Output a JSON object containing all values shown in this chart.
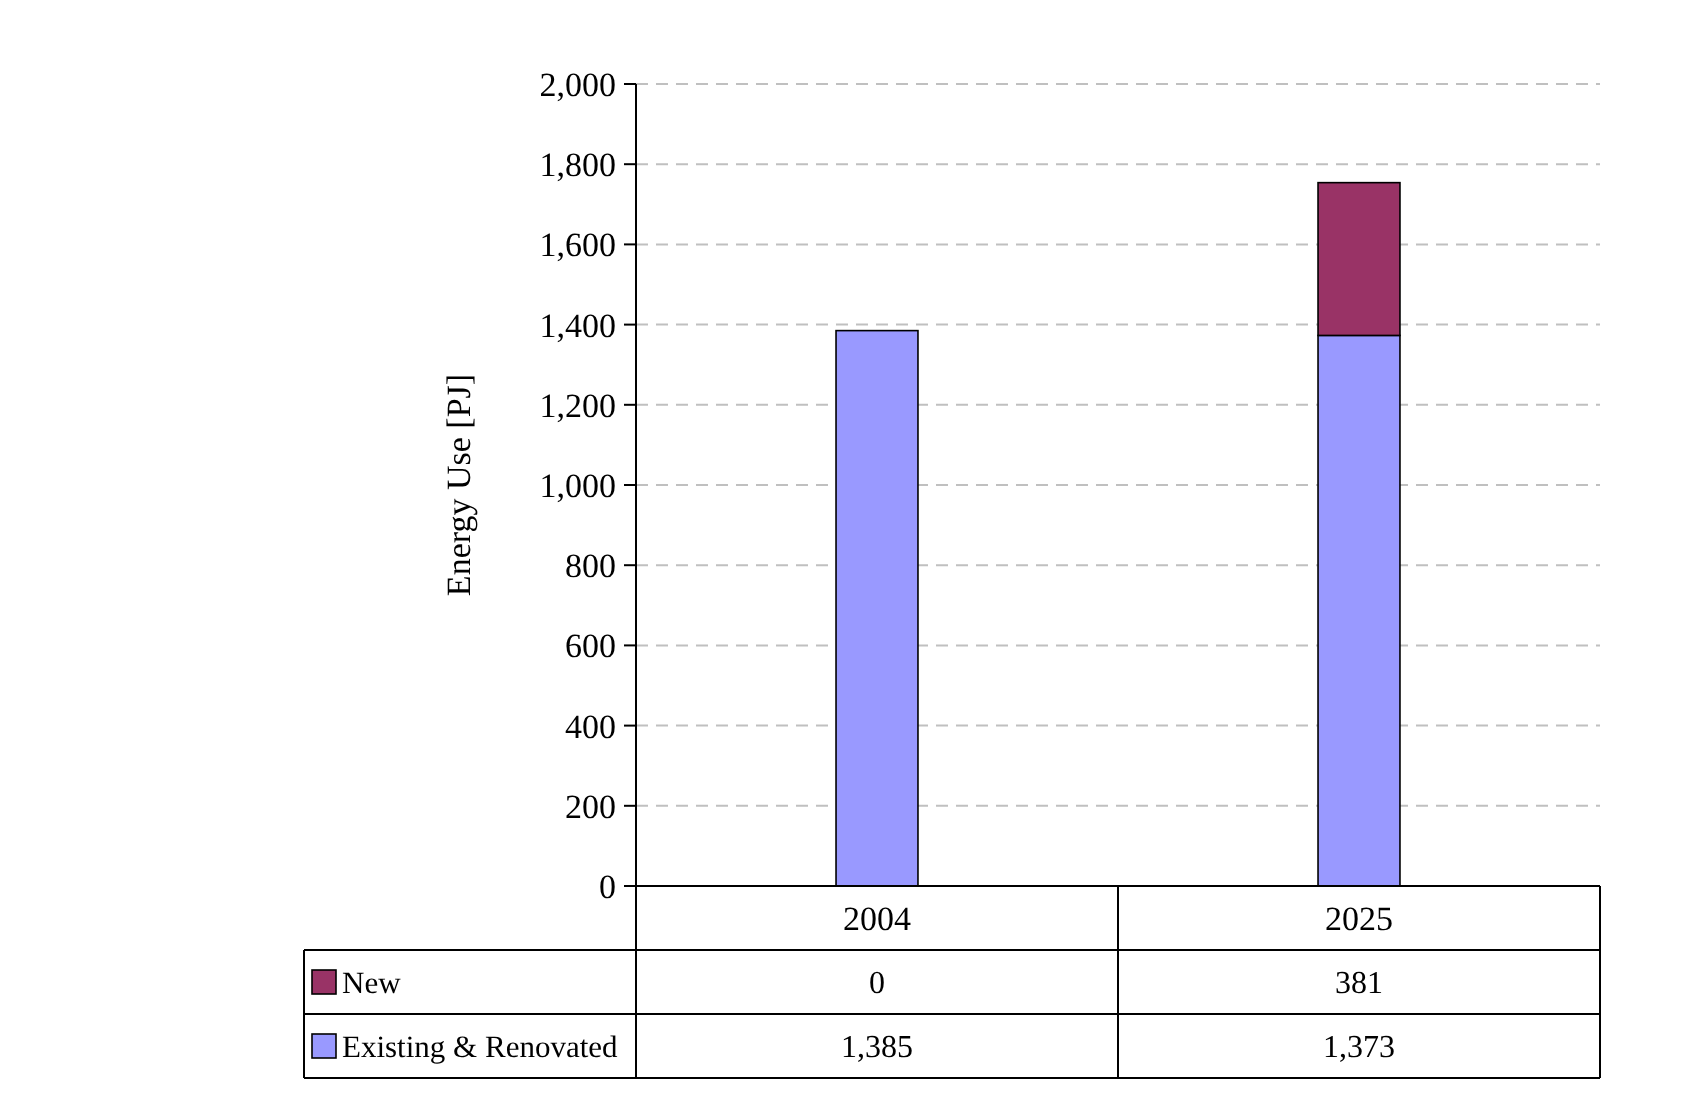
{
  "chart_data": {
    "type": "bar",
    "ylabel": "Energy Use [PJ]",
    "categories": [
      "2004",
      "2025"
    ],
    "stacked": true,
    "grid": "y",
    "legend": "bottom",
    "ylim": [
      0,
      2000
    ],
    "yticks": [
      0,
      {
        "value": 200,
        "label": "200"
      },
      {
        "value": 400,
        "label": "400"
      },
      {
        "value": 600,
        "label": "600"
      },
      {
        "value": 800,
        "label": "800"
      },
      {
        "value": 1000,
        "label": "1,000"
      },
      {
        "value": 1200,
        "label": "1,200"
      },
      {
        "value": 1400,
        "label": "1,400"
      },
      {
        "value": 1600,
        "label": "1,600"
      },
      {
        "value": 1800,
        "label": "1,800"
      },
      {
        "value": 2000,
        "label": "2,000"
      }
    ],
    "series": [
      {
        "name": "Existing & Renovated",
        "color": "#9999ff",
        "values": [
          1385,
          1373
        ],
        "value_labels": [
          "1,385",
          "1,373"
        ]
      },
      {
        "name": "New",
        "color": "#993366",
        "values": [
          0,
          381
        ],
        "value_labels": [
          "0",
          "381"
        ]
      }
    ]
  }
}
